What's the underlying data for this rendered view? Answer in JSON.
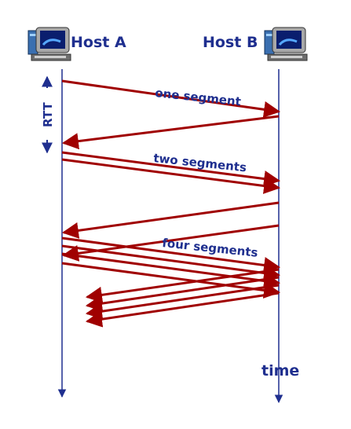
{
  "hosts": {
    "a_label": "Host A",
    "b_label": "Host B"
  },
  "labels": {
    "rtt": "RTT",
    "one_segment": "one segment",
    "two_segments": "two segments",
    "four_segments": "four segments",
    "time": "time"
  },
  "colors": {
    "arrow": "#a00000",
    "timeline": "#1f2f8f",
    "text": "#1f2f8f"
  },
  "icons": [
    "computer-icon",
    "computer-icon"
  ]
}
